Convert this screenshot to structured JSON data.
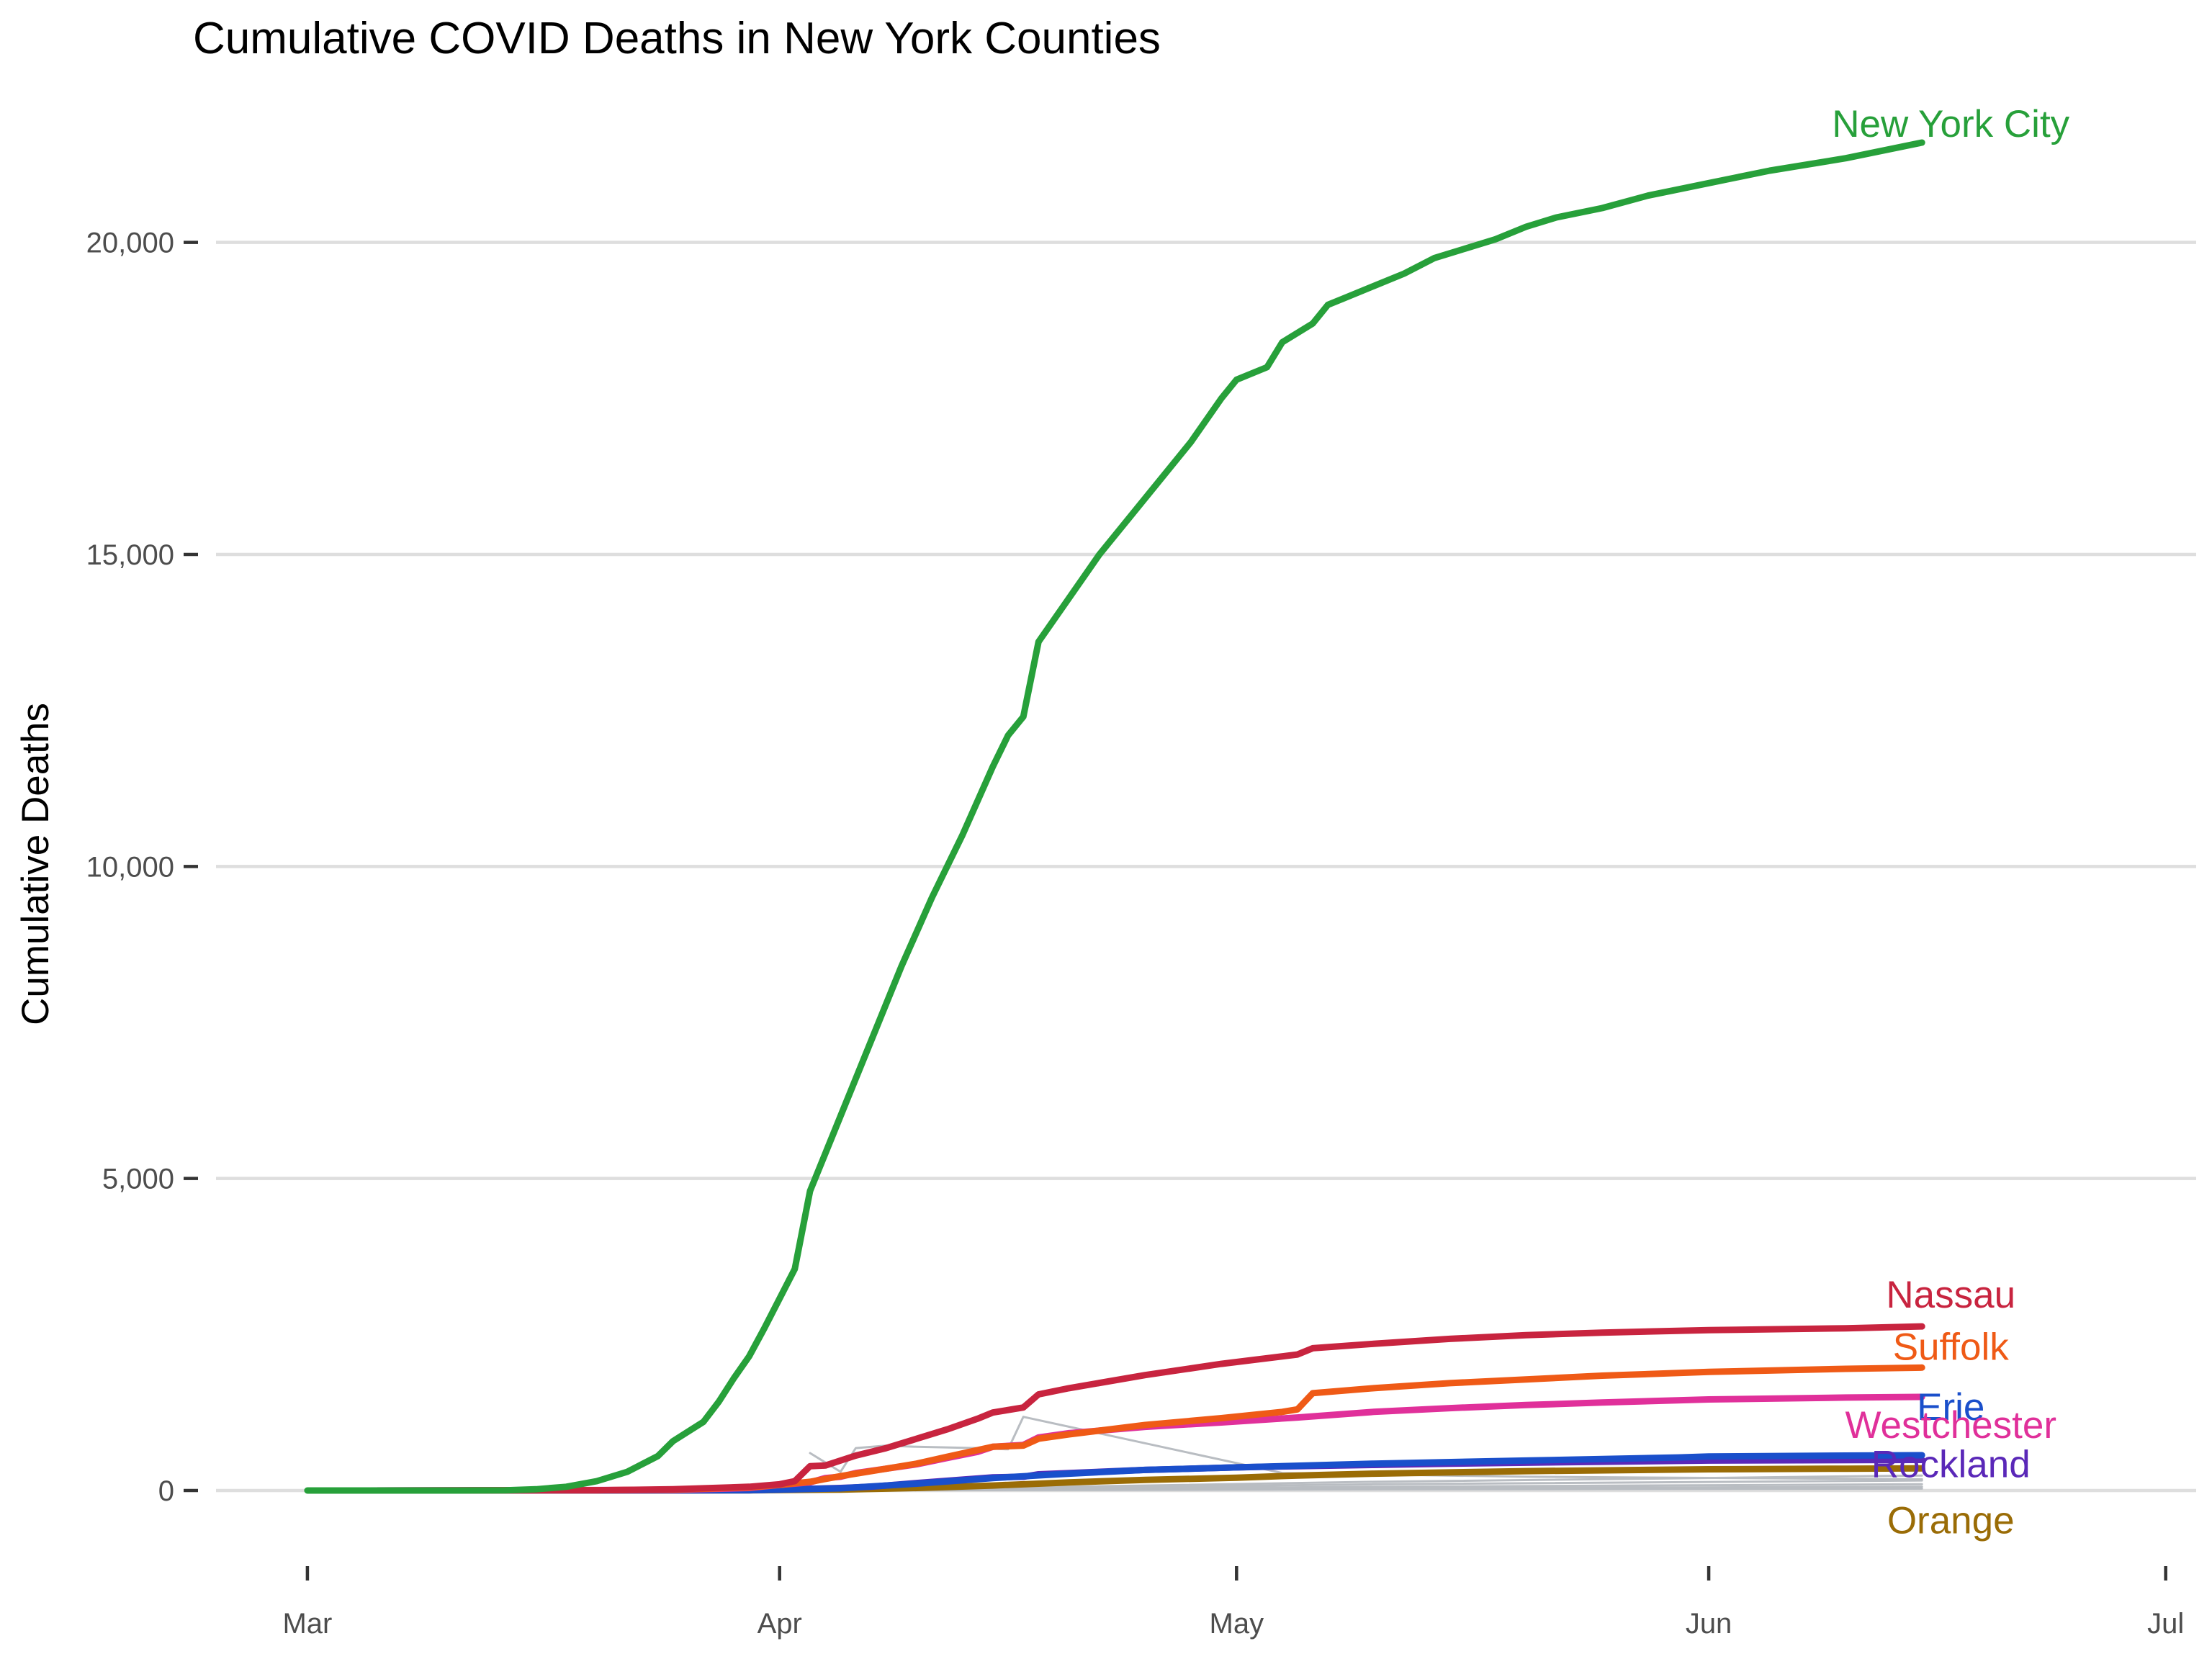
{
  "chart_data": {
    "type": "line",
    "title": "Cumulative COVID Deaths in New York Counties",
    "xlabel": "",
    "ylabel": "Cumulative Deaths",
    "x_type": "date",
    "xlim": [
      "2020-02-24",
      "2020-07-03"
    ],
    "ylim": [
      -1500,
      22500
    ],
    "x_ticks": [
      {
        "date": "2020-03-01",
        "label": "Mar"
      },
      {
        "date": "2020-04-01",
        "label": "Apr"
      },
      {
        "date": "2020-05-01",
        "label": "May"
      },
      {
        "date": "2020-06-01",
        "label": "Jun"
      },
      {
        "date": "2020-07-01",
        "label": "Jul"
      }
    ],
    "y_ticks": [
      {
        "value": 0,
        "label": "0"
      },
      {
        "value": 5000,
        "label": "5,000"
      },
      {
        "value": 10000,
        "label": "10,000"
      },
      {
        "value": 15000,
        "label": "15,000"
      },
      {
        "value": 20000,
        "label": "20,000"
      }
    ],
    "grid": "horizontal",
    "legend": "direct labels at line ends",
    "background_series": {
      "color": "#b9bdc2",
      "lines": [
        {
          "points": [
            [
              "2020-04-03",
              600
            ],
            [
              "2020-04-05",
              300
            ],
            [
              "2020-04-06",
              680
            ],
            [
              "2020-04-08",
              720
            ],
            [
              "2020-04-10",
              700
            ],
            [
              "2020-04-14",
              680
            ],
            [
              "2020-04-16",
              660
            ],
            [
              "2020-04-17",
              1180
            ],
            [
              "2020-05-04",
              280
            ],
            [
              "2020-05-20",
              220
            ],
            [
              "2020-06-15",
              180
            ]
          ]
        },
        {
          "points": [
            [
              "2020-03-25",
              0
            ],
            [
              "2020-04-20",
              60
            ],
            [
              "2020-05-10",
              140
            ],
            [
              "2020-06-15",
              240
            ]
          ]
        },
        {
          "points": [
            [
              "2020-03-25",
              0
            ],
            [
              "2020-04-20",
              40
            ],
            [
              "2020-05-10",
              100
            ],
            [
              "2020-06-15",
              160
            ]
          ]
        },
        {
          "points": [
            [
              "2020-03-25",
              0
            ],
            [
              "2020-04-20",
              25
            ],
            [
              "2020-05-10",
              60
            ],
            [
              "2020-06-15",
              100
            ]
          ]
        },
        {
          "points": [
            [
              "2020-03-25",
              0
            ],
            [
              "2020-04-20",
              15
            ],
            [
              "2020-05-10",
              35
            ],
            [
              "2020-06-15",
              60
            ]
          ]
        },
        {
          "points": [
            [
              "2020-03-25",
              0
            ],
            [
              "2020-04-20",
              8
            ],
            [
              "2020-05-10",
              18
            ],
            [
              "2020-06-15",
              30
            ]
          ]
        }
      ]
    },
    "series": [
      {
        "name": "Orange",
        "color": "#9a6c06",
        "label_y": -480,
        "values": [
          [
            "2020-03-05",
            0
          ],
          [
            "2020-03-30",
            2
          ],
          [
            "2020-04-05",
            15
          ],
          [
            "2020-04-10",
            40
          ],
          [
            "2020-04-15",
            80
          ],
          [
            "2020-04-20",
            130
          ],
          [
            "2020-04-25",
            170
          ],
          [
            "2020-05-01",
            205
          ],
          [
            "2020-05-05",
            240
          ],
          [
            "2020-05-10",
            270
          ],
          [
            "2020-05-20",
            310
          ],
          [
            "2020-06-01",
            340
          ],
          [
            "2020-06-10",
            350
          ],
          [
            "2020-06-15",
            355
          ]
        ]
      },
      {
        "name": "Rockland",
        "color": "#5a28b8",
        "label_y": 420,
        "values": [
          [
            "2020-03-05",
            0
          ],
          [
            "2020-03-30",
            5
          ],
          [
            "2020-04-05",
            40
          ],
          [
            "2020-04-07",
            60
          ],
          [
            "2020-04-10",
            120
          ],
          [
            "2020-04-15",
            210
          ],
          [
            "2020-04-17",
            220
          ],
          [
            "2020-04-18",
            260
          ],
          [
            "2020-04-25",
            330
          ],
          [
            "2020-05-01",
            370
          ],
          [
            "2020-05-05",
            390
          ],
          [
            "2020-05-10",
            410
          ],
          [
            "2020-05-15",
            430
          ],
          [
            "2020-05-20",
            445
          ],
          [
            "2020-05-25",
            460
          ],
          [
            "2020-06-01",
            480
          ],
          [
            "2020-06-15",
            490
          ]
        ]
      },
      {
        "name": "Erie",
        "color": "#1a4fcb",
        "label_y": 1340,
        "values": [
          [
            "2020-03-05",
            0
          ],
          [
            "2020-03-30",
            5
          ],
          [
            "2020-04-05",
            35
          ],
          [
            "2020-04-10",
            110
          ],
          [
            "2020-04-15",
            200
          ],
          [
            "2020-04-20",
            270
          ],
          [
            "2020-04-25",
            330
          ],
          [
            "2020-05-01",
            370
          ],
          [
            "2020-05-10",
            430
          ],
          [
            "2020-05-20",
            480
          ],
          [
            "2020-05-30",
            530
          ],
          [
            "2020-06-01",
            545
          ],
          [
            "2020-06-10",
            560
          ],
          [
            "2020-06-15",
            565
          ]
        ]
      },
      {
        "name": "Westchester",
        "color": "#e0309a",
        "label_y": 1050,
        "values": [
          [
            "2020-03-04",
            0
          ],
          [
            "2020-03-25",
            10
          ],
          [
            "2020-03-30",
            40
          ],
          [
            "2020-04-01",
            90
          ],
          [
            "2020-04-02",
            110
          ],
          [
            "2020-04-03",
            130
          ],
          [
            "2020-04-04",
            200
          ],
          [
            "2020-04-05",
            220
          ],
          [
            "2020-04-06",
            280
          ],
          [
            "2020-04-08",
            350
          ],
          [
            "2020-04-10",
            420
          ],
          [
            "2020-04-12",
            520
          ],
          [
            "2020-04-14",
            620
          ],
          [
            "2020-04-15",
            700
          ],
          [
            "2020-04-17",
            730
          ],
          [
            "2020-04-18",
            850
          ],
          [
            "2020-04-20",
            920
          ],
          [
            "2020-04-25",
            1020
          ],
          [
            "2020-04-30",
            1090
          ],
          [
            "2020-05-05",
            1170
          ],
          [
            "2020-05-10",
            1260
          ],
          [
            "2020-05-15",
            1320
          ],
          [
            "2020-05-20",
            1370
          ],
          [
            "2020-05-25",
            1410
          ],
          [
            "2020-06-01",
            1460
          ],
          [
            "2020-06-10",
            1490
          ],
          [
            "2020-06-15",
            1500
          ]
        ]
      },
      {
        "name": "Suffolk",
        "color": "#ef5a16",
        "label_y": 2300,
        "values": [
          [
            "2020-03-05",
            0
          ],
          [
            "2020-03-20",
            5
          ],
          [
            "2020-03-25",
            15
          ],
          [
            "2020-03-30",
            50
          ],
          [
            "2020-04-01",
            90
          ],
          [
            "2020-04-03",
            140
          ],
          [
            "2020-04-05",
            230
          ],
          [
            "2020-04-08",
            350
          ],
          [
            "2020-04-10",
            430
          ],
          [
            "2020-04-12",
            540
          ],
          [
            "2020-04-15",
            700
          ],
          [
            "2020-04-17",
            720
          ],
          [
            "2020-04-18",
            830
          ],
          [
            "2020-04-20",
            900
          ],
          [
            "2020-04-25",
            1050
          ],
          [
            "2020-04-30",
            1160
          ],
          [
            "2020-05-04",
            1260
          ],
          [
            "2020-05-05",
            1300
          ],
          [
            "2020-05-06",
            1560
          ],
          [
            "2020-05-10",
            1640
          ],
          [
            "2020-05-15",
            1720
          ],
          [
            "2020-05-20",
            1780
          ],
          [
            "2020-05-25",
            1840
          ],
          [
            "2020-06-01",
            1900
          ],
          [
            "2020-06-10",
            1950
          ],
          [
            "2020-06-15",
            1970
          ]
        ]
      },
      {
        "name": "Nassau",
        "color": "#c8243f",
        "label_y": 3140,
        "values": [
          [
            "2020-03-05",
            0
          ],
          [
            "2020-03-20",
            5
          ],
          [
            "2020-03-25",
            20
          ],
          [
            "2020-03-30",
            60
          ],
          [
            "2020-04-01",
            100
          ],
          [
            "2020-04-02",
            150
          ],
          [
            "2020-04-03",
            390
          ],
          [
            "2020-04-04",
            400
          ],
          [
            "2020-04-05",
            480
          ],
          [
            "2020-04-06",
            560
          ],
          [
            "2020-04-08",
            680
          ],
          [
            "2020-04-10",
            830
          ],
          [
            "2020-04-12",
            980
          ],
          [
            "2020-04-14",
            1150
          ],
          [
            "2020-04-15",
            1250
          ],
          [
            "2020-04-17",
            1330
          ],
          [
            "2020-04-18",
            1540
          ],
          [
            "2020-04-20",
            1640
          ],
          [
            "2020-04-25",
            1850
          ],
          [
            "2020-04-30",
            2030
          ],
          [
            "2020-05-05",
            2180
          ],
          [
            "2020-05-06",
            2280
          ],
          [
            "2020-05-10",
            2350
          ],
          [
            "2020-05-15",
            2430
          ],
          [
            "2020-05-20",
            2490
          ],
          [
            "2020-05-25",
            2530
          ],
          [
            "2020-06-01",
            2570
          ],
          [
            "2020-06-10",
            2600
          ],
          [
            "2020-06-15",
            2630
          ]
        ]
      },
      {
        "name": "New York City",
        "color": "#27a03a",
        "label_y": 21900,
        "values": [
          [
            "2020-03-01",
            0
          ],
          [
            "2020-03-10",
            0
          ],
          [
            "2020-03-14",
            2
          ],
          [
            "2020-03-16",
            20
          ],
          [
            "2020-03-18",
            60
          ],
          [
            "2020-03-20",
            150
          ],
          [
            "2020-03-22",
            300
          ],
          [
            "2020-03-24",
            550
          ],
          [
            "2020-03-25",
            790
          ],
          [
            "2020-03-27",
            1100
          ],
          [
            "2020-03-28",
            1420
          ],
          [
            "2020-03-29",
            1800
          ],
          [
            "2020-03-30",
            2150
          ],
          [
            "2020-03-31",
            2600
          ],
          [
            "2020-04-02",
            3550
          ],
          [
            "2020-04-03",
            4800
          ],
          [
            "2020-04-05",
            6000
          ],
          [
            "2020-04-07",
            7200
          ],
          [
            "2020-04-09",
            8400
          ],
          [
            "2020-04-11",
            9500
          ],
          [
            "2020-04-13",
            10500
          ],
          [
            "2020-04-15",
            11600
          ],
          [
            "2020-04-16",
            12100
          ],
          [
            "2020-04-17",
            12400
          ],
          [
            "2020-04-18",
            13600
          ],
          [
            "2020-04-20",
            14300
          ],
          [
            "2020-04-22",
            15000
          ],
          [
            "2020-04-24",
            15600
          ],
          [
            "2020-04-26",
            16200
          ],
          [
            "2020-04-28",
            16800
          ],
          [
            "2020-04-30",
            17500
          ],
          [
            "2020-05-01",
            17800
          ],
          [
            "2020-05-03",
            18000
          ],
          [
            "2020-05-04",
            18400
          ],
          [
            "2020-05-06",
            18700
          ],
          [
            "2020-05-07",
            19000
          ],
          [
            "2020-05-08",
            19100
          ],
          [
            "2020-05-10",
            19300
          ],
          [
            "2020-05-12",
            19500
          ],
          [
            "2020-05-14",
            19750
          ],
          [
            "2020-05-16",
            19900
          ],
          [
            "2020-05-18",
            20050
          ],
          [
            "2020-05-20",
            20250
          ],
          [
            "2020-05-22",
            20400
          ],
          [
            "2020-05-25",
            20550
          ],
          [
            "2020-05-28",
            20750
          ],
          [
            "2020-06-01",
            20950
          ],
          [
            "2020-06-05",
            21150
          ],
          [
            "2020-06-10",
            21350
          ],
          [
            "2020-06-15",
            21600
          ]
        ]
      }
    ]
  }
}
